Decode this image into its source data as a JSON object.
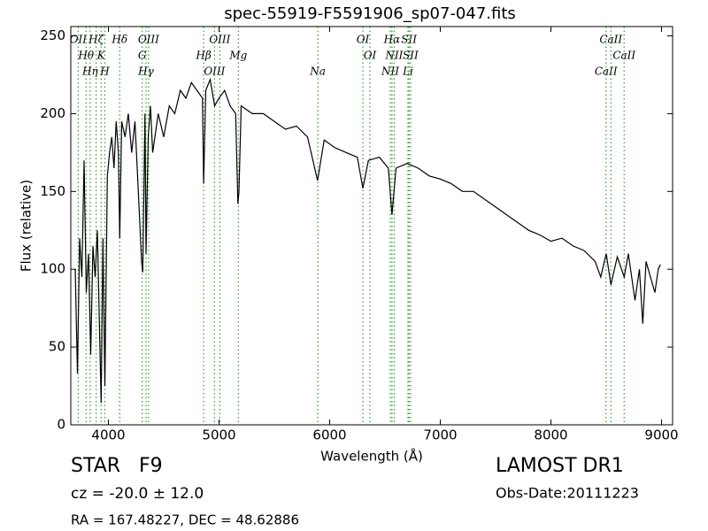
{
  "chart_data": {
    "type": "line",
    "title": "spec-55919-F5591906_sp07-047.fits",
    "x_label": "Wavelength (Å)",
    "y_label": "Flux (relative)",
    "xlim": [
      3660,
      9100
    ],
    "ylim": [
      0,
      256
    ],
    "xticks": [
      4000,
      5000,
      6000,
      7000,
      8000,
      9000
    ],
    "yticks": [
      0,
      50,
      100,
      150,
      200,
      250
    ],
    "grid": false,
    "color": "#000000",
    "line_color": "#2ca02c",
    "x": [
      3700,
      3720,
      3740,
      3760,
      3780,
      3800,
      3820,
      3840,
      3860,
      3880,
      3900,
      3920,
      3934,
      3950,
      3968,
      3990,
      4010,
      4030,
      4050,
      4070,
      4090,
      4102,
      4120,
      4150,
      4180,
      4210,
      4240,
      4270,
      4300,
      4310,
      4330,
      4340,
      4360,
      4380,
      4400,
      4450,
      4500,
      4550,
      4600,
      4650,
      4700,
      4750,
      4800,
      4850,
      4861,
      4880,
      4920,
      4960,
      5000,
      5050,
      5100,
      5150,
      5170,
      5180,
      5200,
      5300,
      5400,
      5500,
      5600,
      5700,
      5800,
      5890,
      5950,
      6050,
      6150,
      6250,
      6300,
      6350,
      6450,
      6530,
      6563,
      6600,
      6700,
      6800,
      6900,
      7000,
      7100,
      7200,
      7300,
      7400,
      7500,
      7600,
      7700,
      7800,
      7900,
      8000,
      8100,
      8200,
      8300,
      8400,
      8450,
      8500,
      8542,
      8600,
      8662,
      8700,
      8760,
      8800,
      8830,
      8860,
      8900,
      8940,
      8970,
      8990
    ],
    "values": [
      100,
      33,
      120,
      95,
      170,
      85,
      110,
      45,
      115,
      95,
      125,
      60,
      14,
      120,
      25,
      160,
      175,
      185,
      165,
      195,
      175,
      120,
      195,
      185,
      200,
      175,
      195,
      150,
      105,
      98,
      200,
      110,
      185,
      205,
      175,
      200,
      185,
      205,
      200,
      215,
      210,
      220,
      215,
      210,
      155,
      215,
      222,
      205,
      210,
      215,
      205,
      200,
      142,
      150,
      205,
      200,
      200,
      195,
      190,
      192,
      185,
      157,
      183,
      178,
      175,
      172,
      152,
      170,
      172,
      165,
      135,
      165,
      168,
      165,
      160,
      158,
      155,
      150,
      150,
      145,
      140,
      135,
      130,
      125,
      122,
      118,
      120,
      115,
      112,
      105,
      95,
      110,
      90,
      108,
      95,
      110,
      80,
      100,
      65,
      105,
      95,
      85,
      100,
      103
    ],
    "spectral_lines": [
      {
        "label": "OII",
        "wavelength": 3727
      },
      {
        "label": "Hθ",
        "wavelength": 3798
      },
      {
        "label": "Hη",
        "wavelength": 3835
      },
      {
        "label": "Hζ",
        "wavelength": 3889
      },
      {
        "label": "K",
        "wavelength": 3934
      },
      {
        "label": "H",
        "wavelength": 3968
      },
      {
        "label": "Hδ",
        "wavelength": 4102
      },
      {
        "label": "G",
        "wavelength": 4305
      },
      {
        "label": "Hγ",
        "wavelength": 4340
      },
      {
        "label": "OIII",
        "wavelength": 4363
      },
      {
        "label": "Hβ",
        "wavelength": 4861
      },
      {
        "label": "OIII",
        "wavelength": 4959
      },
      {
        "label": "OIII",
        "wavelength": 5007
      },
      {
        "label": "Mg",
        "wavelength": 5175
      },
      {
        "label": "Na",
        "wavelength": 5893
      },
      {
        "label": "OI",
        "wavelength": 6300
      },
      {
        "label": "OI",
        "wavelength": 6364
      },
      {
        "label": "NII",
        "wavelength": 6548
      },
      {
        "label": "Hα",
        "wavelength": 6563
      },
      {
        "label": "NII",
        "wavelength": 6583
      },
      {
        "label": "Li",
        "wavelength": 6708
      },
      {
        "label": "SII",
        "wavelength": 6717
      },
      {
        "label": "SII",
        "wavelength": 6731
      },
      {
        "label": "CaII",
        "wavelength": 8498
      },
      {
        "label": "CaII",
        "wavelength": 8542
      },
      {
        "label": "CaII",
        "wavelength": 8662
      }
    ],
    "annotations": [
      "STAR   F9",
      "cz = -20.0 ± 12.0",
      "RA = 167.48227, DEC = 48.62886",
      "LAMOST DR1",
      "Obs-Date:20111223"
    ]
  }
}
